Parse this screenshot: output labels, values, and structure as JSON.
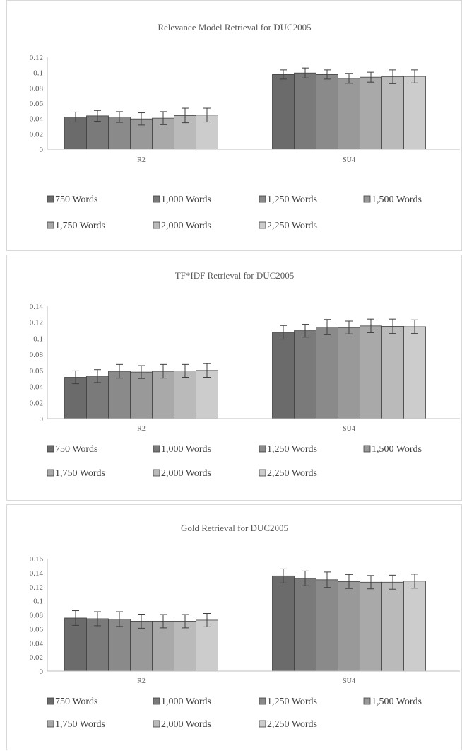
{
  "chart_data": [
    {
      "type": "bar",
      "title": "Relevance Model Retrieval for DUC2005",
      "categories": [
        "R2",
        "SU4"
      ],
      "ylim": [
        0,
        0.12
      ],
      "yticks": [
        "0",
        "0.02",
        "0.04",
        "0.06",
        "0.08",
        "0.1",
        "0.12"
      ],
      "ytick_values": [
        0,
        0.02,
        0.04,
        0.06,
        0.08,
        0.1,
        0.12
      ],
      "legend_position": "bottom",
      "series": [
        {
          "name": "750 Words",
          "color": "#6b6b6b",
          "values": [
            0.042,
            0.0975
          ],
          "errors": [
            0.0065,
            0.006
          ]
        },
        {
          "name": "1,000 Words",
          "color": "#7a7a7a",
          "values": [
            0.0435,
            0.0995
          ],
          "errors": [
            0.007,
            0.0065
          ]
        },
        {
          "name": "1,250 Words",
          "color": "#8a8a8a",
          "values": [
            0.042,
            0.0975
          ],
          "errors": [
            0.007,
            0.006
          ]
        },
        {
          "name": "1,500 Words",
          "color": "#999999",
          "values": [
            0.0395,
            0.0925
          ],
          "errors": [
            0.008,
            0.0065
          ]
        },
        {
          "name": "1,750 Words",
          "color": "#a9a9a9",
          "values": [
            0.0405,
            0.094
          ],
          "errors": [
            0.0085,
            0.0065
          ]
        },
        {
          "name": "2,000 Words",
          "color": "#bababa",
          "values": [
            0.044,
            0.0945
          ],
          "errors": [
            0.0095,
            0.009
          ]
        },
        {
          "name": "2,250 Words",
          "color": "#cccccc",
          "values": [
            0.0445,
            0.095
          ],
          "errors": [
            0.009,
            0.0085
          ]
        }
      ]
    },
    {
      "type": "bar",
      "title": "TF*IDF Retrieval for DUC2005",
      "categories": [
        "R2",
        "SU4"
      ],
      "ylim": [
        0,
        0.14
      ],
      "yticks": [
        "0",
        "0.02",
        "0.04",
        "0.06",
        "0.08",
        "0.1",
        "0.12",
        "0.14"
      ],
      "ytick_values": [
        0,
        0.02,
        0.04,
        0.06,
        0.08,
        0.1,
        0.12,
        0.14
      ],
      "legend_position": "bottom",
      "series": [
        {
          "name": "750 Words",
          "color": "#6b6b6b",
          "values": [
            0.0515,
            0.1075
          ],
          "errors": [
            0.008,
            0.0085
          ]
        },
        {
          "name": "1,000 Words",
          "color": "#7a7a7a",
          "values": [
            0.053,
            0.1095
          ],
          "errors": [
            0.008,
            0.008
          ]
        },
        {
          "name": "1,250 Words",
          "color": "#8a8a8a",
          "values": [
            0.059,
            0.114
          ],
          "errors": [
            0.0085,
            0.0095
          ]
        },
        {
          "name": "1,500 Words",
          "color": "#999999",
          "values": [
            0.058,
            0.1135
          ],
          "errors": [
            0.008,
            0.008
          ]
        },
        {
          "name": "1,750 Words",
          "color": "#a9a9a9",
          "values": [
            0.059,
            0.1155
          ],
          "errors": [
            0.0085,
            0.0085
          ]
        },
        {
          "name": "2,000 Words",
          "color": "#bababa",
          "values": [
            0.0595,
            0.115
          ],
          "errors": [
            0.008,
            0.009
          ]
        },
        {
          "name": "2,250 Words",
          "color": "#cccccc",
          "values": [
            0.06,
            0.1145
          ],
          "errors": [
            0.0085,
            0.0085
          ]
        }
      ]
    },
    {
      "type": "bar",
      "title": "Gold Retrieval for DUC2005",
      "categories": [
        "R2",
        "SU4"
      ],
      "ylim": [
        0,
        0.16
      ],
      "yticks": [
        "0",
        "0.02",
        "0.04",
        "0.06",
        "0.08",
        "0.1",
        "0.12",
        "0.14",
        "0.16"
      ],
      "ytick_values": [
        0,
        0.02,
        0.04,
        0.06,
        0.08,
        0.1,
        0.12,
        0.14,
        0.16
      ],
      "legend_position": "bottom",
      "series": [
        {
          "name": "750 Words",
          "color": "#6b6b6b",
          "values": [
            0.0755,
            0.1355
          ],
          "errors": [
            0.0105,
            0.01
          ]
        },
        {
          "name": "1,000 Words",
          "color": "#7a7a7a",
          "values": [
            0.0745,
            0.132
          ],
          "errors": [
            0.01,
            0.0105
          ]
        },
        {
          "name": "1,250 Words",
          "color": "#8a8a8a",
          "values": [
            0.074,
            0.13
          ],
          "errors": [
            0.0105,
            0.011
          ]
        },
        {
          "name": "1,500 Words",
          "color": "#999999",
          "values": [
            0.071,
            0.1275
          ],
          "errors": [
            0.01,
            0.01
          ]
        },
        {
          "name": "1,750 Words",
          "color": "#a9a9a9",
          "values": [
            0.071,
            0.1265
          ],
          "errors": [
            0.0095,
            0.0095
          ]
        },
        {
          "name": "2,000 Words",
          "color": "#bababa",
          "values": [
            0.071,
            0.1265
          ],
          "errors": [
            0.0095,
            0.01
          ]
        },
        {
          "name": "2,250 Words",
          "color": "#cccccc",
          "values": [
            0.0725,
            0.128
          ],
          "errors": [
            0.0095,
            0.01
          ]
        }
      ]
    }
  ]
}
